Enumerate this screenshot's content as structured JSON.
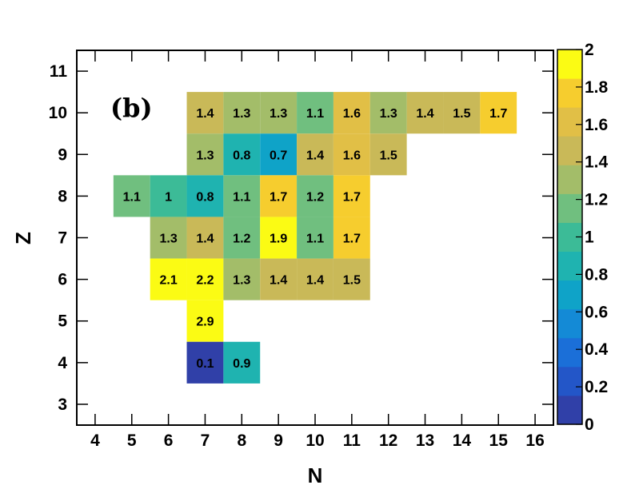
{
  "chart_data": {
    "type": "heatmap",
    "panel_label": "(b)",
    "xlabel": "N",
    "ylabel": "Z",
    "xlim": [
      3.5,
      16.5
    ],
    "ylim": [
      2.5,
      11.5
    ],
    "x_ticks": [
      "4",
      "5",
      "6",
      "7",
      "8",
      "9",
      "10",
      "11",
      "12",
      "13",
      "14",
      "15",
      "16"
    ],
    "y_ticks": [
      "3",
      "4",
      "5",
      "6",
      "7",
      "8",
      "9",
      "10",
      "11"
    ],
    "color_scale": {
      "min": 0,
      "max": 2,
      "ticks": [
        "0",
        "0.2",
        "0.4",
        "0.6",
        "0.8",
        "1",
        "1.2",
        "1.4",
        "1.6",
        "1.8",
        "2"
      ]
    },
    "cells": [
      {
        "n": 7,
        "z": 10,
        "value": 1.4,
        "label": "1.4"
      },
      {
        "n": 8,
        "z": 10,
        "value": 1.3,
        "label": "1.3"
      },
      {
        "n": 9,
        "z": 10,
        "value": 1.3,
        "label": "1.3"
      },
      {
        "n": 10,
        "z": 10,
        "value": 1.1,
        "label": "1.1"
      },
      {
        "n": 11,
        "z": 10,
        "value": 1.6,
        "label": "1.6"
      },
      {
        "n": 12,
        "z": 10,
        "value": 1.3,
        "label": "1.3"
      },
      {
        "n": 13,
        "z": 10,
        "value": 1.4,
        "label": "1.4"
      },
      {
        "n": 14,
        "z": 10,
        "value": 1.5,
        "label": "1.5"
      },
      {
        "n": 15,
        "z": 10,
        "value": 1.7,
        "label": "1.7"
      },
      {
        "n": 7,
        "z": 9,
        "value": 1.3,
        "label": "1.3"
      },
      {
        "n": 8,
        "z": 9,
        "value": 0.8,
        "label": "0.8"
      },
      {
        "n": 9,
        "z": 9,
        "value": 0.7,
        "label": "0.7"
      },
      {
        "n": 10,
        "z": 9,
        "value": 1.4,
        "label": "1.4"
      },
      {
        "n": 11,
        "z": 9,
        "value": 1.6,
        "label": "1.6"
      },
      {
        "n": 12,
        "z": 9,
        "value": 1.5,
        "label": "1.5"
      },
      {
        "n": 5,
        "z": 8,
        "value": 1.1,
        "label": "1.1"
      },
      {
        "n": 6,
        "z": 8,
        "value": 1.0,
        "label": "1"
      },
      {
        "n": 7,
        "z": 8,
        "value": 0.8,
        "label": "0.8"
      },
      {
        "n": 8,
        "z": 8,
        "value": 1.1,
        "label": "1.1"
      },
      {
        "n": 9,
        "z": 8,
        "value": 1.7,
        "label": "1.7"
      },
      {
        "n": 10,
        "z": 8,
        "value": 1.2,
        "label": "1.2"
      },
      {
        "n": 11,
        "z": 8,
        "value": 1.7,
        "label": "1.7"
      },
      {
        "n": 6,
        "z": 7,
        "value": 1.3,
        "label": "1.3"
      },
      {
        "n": 7,
        "z": 7,
        "value": 1.4,
        "label": "1.4"
      },
      {
        "n": 8,
        "z": 7,
        "value": 1.2,
        "label": "1.2"
      },
      {
        "n": 9,
        "z": 7,
        "value": 1.9,
        "label": "1.9"
      },
      {
        "n": 10,
        "z": 7,
        "value": 1.1,
        "label": "1.1"
      },
      {
        "n": 11,
        "z": 7,
        "value": 1.7,
        "label": "1.7"
      },
      {
        "n": 6,
        "z": 6,
        "value": 2.1,
        "label": "2.1"
      },
      {
        "n": 7,
        "z": 6,
        "value": 2.2,
        "label": "2.2"
      },
      {
        "n": 8,
        "z": 6,
        "value": 1.3,
        "label": "1.3"
      },
      {
        "n": 9,
        "z": 6,
        "value": 1.4,
        "label": "1.4"
      },
      {
        "n": 10,
        "z": 6,
        "value": 1.4,
        "label": "1.4"
      },
      {
        "n": 11,
        "z": 6,
        "value": 1.5,
        "label": "1.5"
      },
      {
        "n": 7,
        "z": 5,
        "value": 2.9,
        "label": "2.9"
      },
      {
        "n": 7,
        "z": 4,
        "value": 0.1,
        "label": "0.1"
      },
      {
        "n": 8,
        "z": 4,
        "value": 0.9,
        "label": "0.9"
      }
    ],
    "colors": {
      "palette": [
        "#3040a8",
        "#2356c8",
        "#1b6fd8",
        "#148ad6",
        "#0fa3c8",
        "#1fb3b0",
        "#3cbb97",
        "#70bf7f",
        "#a3bd69",
        "#c9b958",
        "#e1bf46",
        "#f6cd2e",
        "#fbfb14"
      ]
    }
  }
}
